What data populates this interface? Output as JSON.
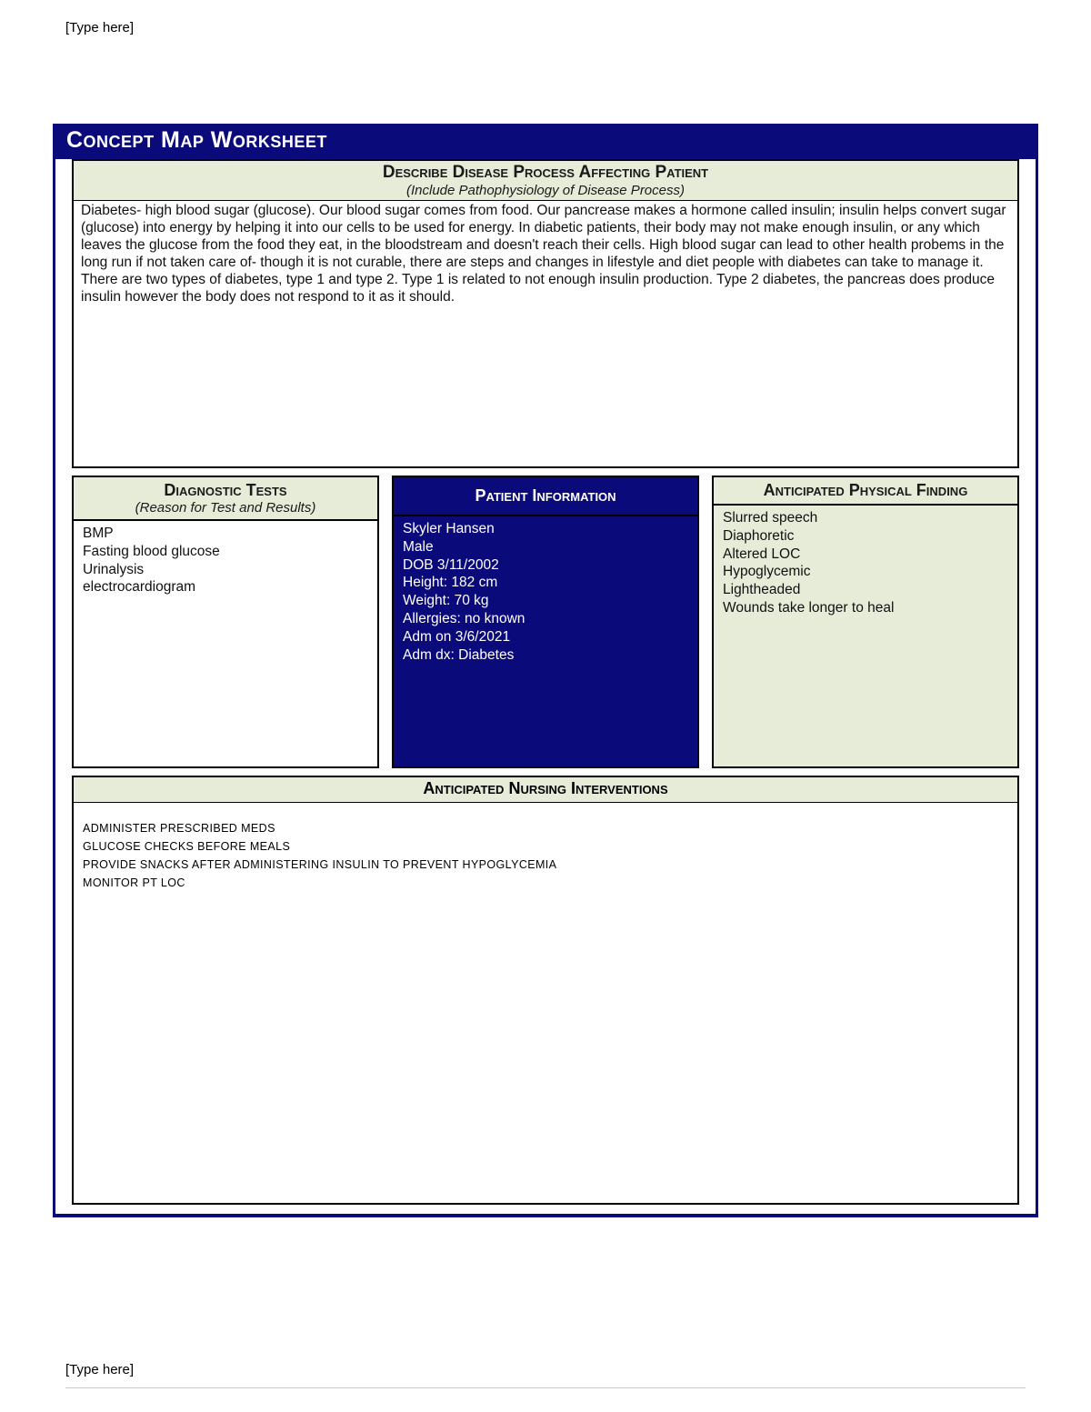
{
  "header_text": "[Type here]",
  "footer_text": "[Type here]",
  "title": "Concept Map Worksheet",
  "disease": {
    "title": "Describe Disease Process Affecting Patient",
    "subtitle": "(Include Pathophysiology of Disease Process)",
    "body": "Diabetes- high blood sugar (glucose). Our blood sugar comes from food. Our pancrease makes a hormone called insulin; insulin helps convert sugar (glucose) into energy by helping it into our cells to be used for energy. In diabetic patients, their body may not make enough insulin, or any which leaves the glucose from the food they eat, in the bloodstream and doesn't reach their cells. High blood sugar can lead to other health probems in the long run if not taken care of- though it is not curable, there are steps and changes in lifestyle and diet people with diabetes can take to manage it. There are two types of diabetes, type 1 and type 2. Type 1 is related to not enough insulin production. Type 2 diabetes, the pancreas does produce insulin however the body does not respond to it as it should."
  },
  "diagnostic": {
    "title": "Diagnostic Tests",
    "subtitle": "(Reason for Test and Results)",
    "items": [
      "BMP",
      "Fasting blood glucose",
      "Urinalysis",
      "electrocardiogram"
    ]
  },
  "patient": {
    "title": "Patient Information",
    "lines": [
      "Skyler Hansen",
      "Male",
      "DOB 3/11/2002",
      "Height: 182 cm",
      "Weight: 70 kg",
      "Allergies: no known",
      "Adm on 3/6/2021",
      "Adm dx: Diabetes"
    ]
  },
  "findings": {
    "title": "Anticipated Physical Finding",
    "items": [
      "Slurred speech",
      "Diaphoretic",
      "Altered LOC",
      "Hypoglycemic",
      "Lightheaded",
      "Wounds take longer to heal"
    ]
  },
  "interventions": {
    "title": "Anticipated Nursing Interventions",
    "items": [
      "Administer prescribed meds",
      "Glucose checks before meals",
      "Provide snacks after administering insulin to prevent hypoglycemia",
      "Monitor pt LOC"
    ]
  },
  "colors": {
    "navy": "#0a0a7a",
    "pale_green": "#e6ecd8",
    "white": "#ffffff",
    "black": "#000000"
  }
}
